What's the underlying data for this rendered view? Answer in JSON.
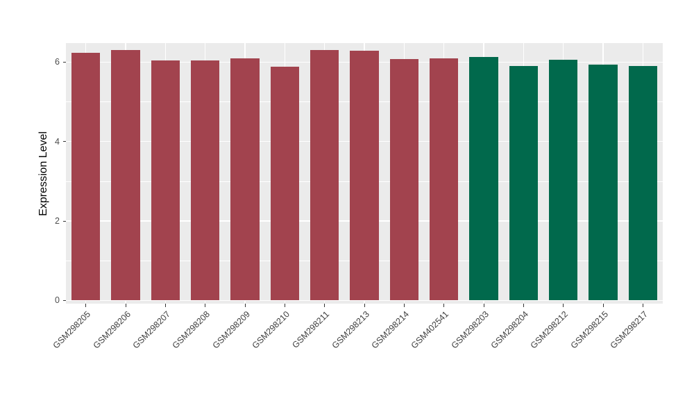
{
  "chart_data": {
    "type": "bar",
    "title": "",
    "xlabel": "",
    "ylabel": "Expression Level",
    "categories": [
      "GSM298205",
      "GSM298206",
      "GSM298207",
      "GSM298208",
      "GSM298209",
      "GSM298210",
      "GSM298211",
      "GSM298213",
      "GSM298214",
      "GSM402541",
      "GSM298203",
      "GSM298204",
      "GSM298212",
      "GSM298215",
      "GSM298217"
    ],
    "values": [
      6.24,
      6.3,
      6.04,
      6.04,
      6.09,
      5.88,
      6.31,
      6.29,
      6.07,
      6.1,
      6.13,
      5.91,
      6.06,
      5.94,
      5.91
    ],
    "groups": [
      "A",
      "A",
      "A",
      "A",
      "A",
      "A",
      "A",
      "A",
      "A",
      "A",
      "B",
      "B",
      "B",
      "B",
      "B"
    ],
    "group_colors": {
      "A": "#A2434E",
      "B": "#01694C"
    },
    "ylim": [
      0,
      6.5
    ],
    "yticks": [
      0,
      2,
      4,
      6
    ],
    "yticks_minor": [
      1,
      3,
      5
    ],
    "grid": "on",
    "legend": "none",
    "panel_bg": "#EBEBEB",
    "grid_color": "#FFFFFF"
  }
}
